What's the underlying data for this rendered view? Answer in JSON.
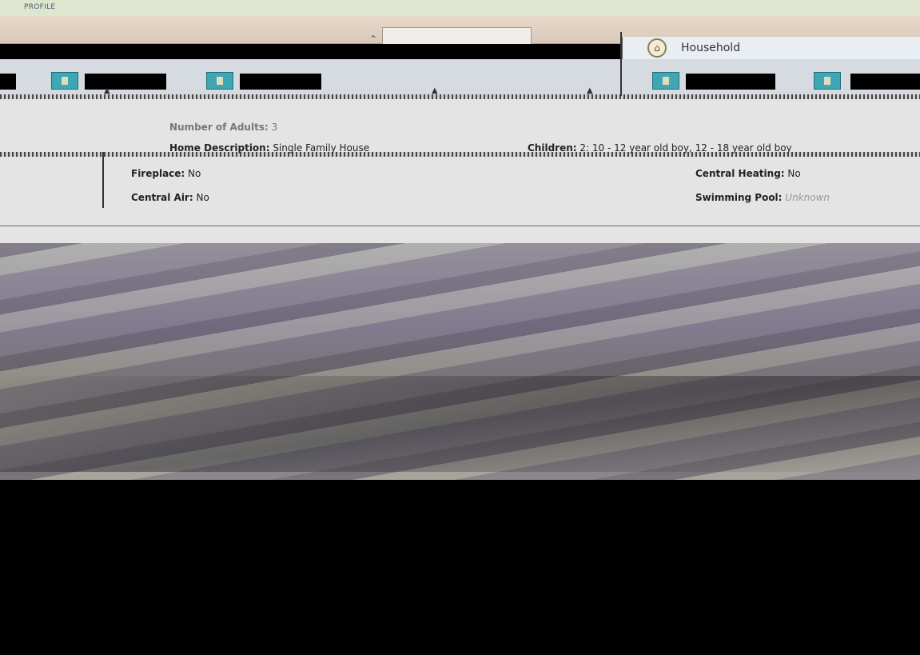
{
  "header": {
    "profile_label": "PROFILE",
    "household_label": "Household"
  },
  "details": {
    "adults_label": "Number of Adults:",
    "adults_value": "3",
    "home_description_label": "Home Description:",
    "home_description_value": "Single Family House",
    "children_label": "Children:",
    "children_value": "2: 10 - 12 year old boy, 12 - 18 year old boy",
    "fireplace_label": "Fireplace:",
    "fireplace_value": "No",
    "central_heating_label": "Central Heating:",
    "central_heating_value": "No",
    "central_air_label": "Central Air:",
    "central_air_value": "No",
    "swimming_pool_label": "Swimming Pool:",
    "swimming_pool_value": "Unknown"
  },
  "colors": {
    "chip": "#3fa7b3",
    "panel": "#e4e4e4"
  },
  "icons": [
    "household-icon",
    "caret-up-icon",
    "tool-chip-icon",
    "triangle-icon"
  ]
}
